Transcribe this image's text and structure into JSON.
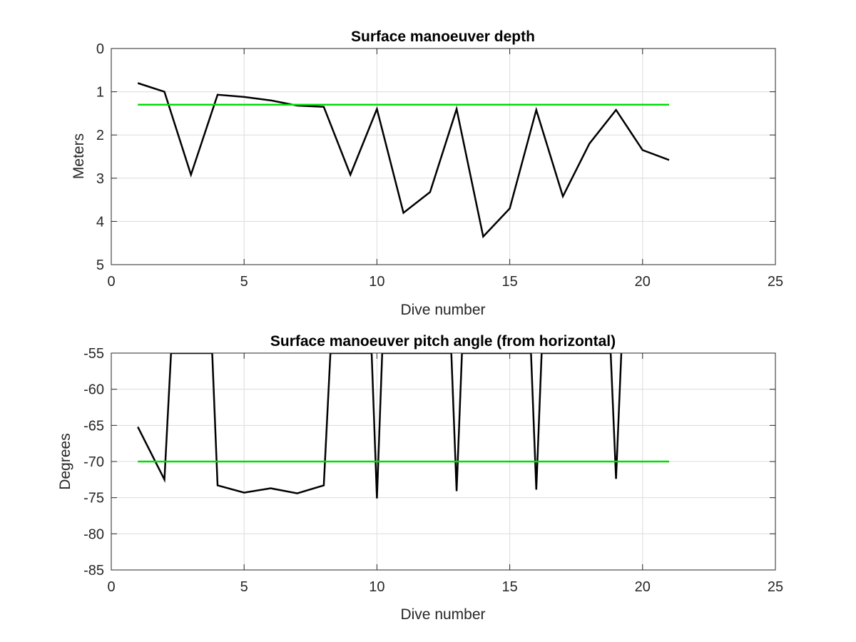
{
  "chart_data": [
    {
      "type": "line",
      "title": "Surface manoeuver depth",
      "xlabel": "Dive number",
      "ylabel": "Meters",
      "xlim": [
        0,
        25
      ],
      "ylim": [
        0,
        5
      ],
      "y_reversed": true,
      "grid": true,
      "xticks": [
        "0",
        "5",
        "10",
        "15",
        "20",
        "25"
      ],
      "yticks": [
        "0",
        "1",
        "2",
        "3",
        "4",
        "5"
      ],
      "series": [
        {
          "color": "#000000",
          "x": [
            1,
            2,
            3,
            4,
            5,
            6,
            7,
            8,
            9,
            10,
            11,
            12,
            13,
            14,
            15,
            16,
            17,
            18,
            19,
            20,
            21
          ],
          "values": [
            0.8,
            1.0,
            2.92,
            1.07,
            1.12,
            1.2,
            1.32,
            1.35,
            2.92,
            1.4,
            3.8,
            3.32,
            1.4,
            4.35,
            3.7,
            1.42,
            3.42,
            2.2,
            1.42,
            2.35,
            2.58
          ]
        },
        {
          "color": "#00dd00",
          "x": [
            1,
            21
          ],
          "values": [
            1.3,
            1.3
          ]
        }
      ]
    },
    {
      "type": "line",
      "title": "Surface manoeuver pitch angle (from horizontal)",
      "xlabel": "Dive number",
      "ylabel": "Degrees",
      "xlim": [
        0,
        25
      ],
      "ylim": [
        -85,
        -55
      ],
      "grid": true,
      "xticks": [
        "0",
        "5",
        "10",
        "15",
        "20",
        "25"
      ],
      "yticks": [
        "-55",
        "-60",
        "-65",
        "-70",
        "-75",
        "-80",
        "-85"
      ],
      "series": [
        {
          "color": "#000000",
          "x": [
            1,
            2,
            2.25,
            3.8,
            4,
            5,
            6,
            7,
            8,
            8.25,
            9.8,
            10,
            10.2,
            12.8,
            13,
            13.2,
            15.8,
            16,
            16.2,
            18.8,
            19,
            19.2
          ],
          "values": [
            -65.2,
            -72.5,
            -55,
            -55,
            -73.3,
            -74.3,
            -73.7,
            -74.4,
            -73.3,
            -55,
            -55,
            -75.1,
            -55,
            -55,
            -74.1,
            -55,
            -55,
            -73.9,
            -55,
            -55,
            -72.4,
            -55
          ]
        },
        {
          "color": "#00dd00",
          "x": [
            1,
            21
          ],
          "values": [
            -70,
            -70
          ]
        }
      ]
    }
  ]
}
